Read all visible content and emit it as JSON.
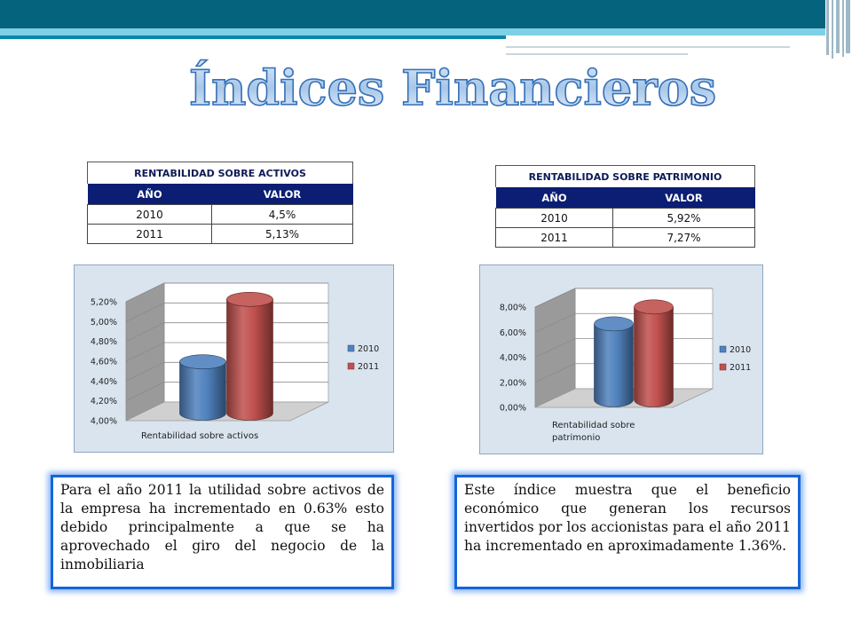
{
  "title": "Índices Financieros",
  "tables": [
    {
      "caption": "RENTABILIDAD SOBRE ACTIVOS",
      "col_year": "AÑO",
      "col_value": "VALOR",
      "rows": [
        {
          "year": "2010",
          "value": "4,5%"
        },
        {
          "year": "2011",
          "value": "5,13%"
        }
      ]
    },
    {
      "caption": "RENTABILIDAD SOBRE  PATRIMONIO",
      "col_year": "AÑO",
      "col_value": "VALOR",
      "rows": [
        {
          "year": "2010",
          "value": "5,92%"
        },
        {
          "year": "2011",
          "value": "7,27%"
        }
      ]
    }
  ],
  "chart_data": [
    {
      "type": "bar",
      "style": "3d-cylinder",
      "categories": [
        "Rentabilidad sobre activos"
      ],
      "series": [
        {
          "name": "2010",
          "values": [
            4.5
          ],
          "color": "#4f81bd"
        },
        {
          "name": "2011",
          "values": [
            5.13
          ],
          "color": "#c0504d"
        }
      ],
      "xlabel": "Rentabilidad sobre activos",
      "ylim": [
        4.0,
        5.2
      ],
      "yticks": [
        "4,00%",
        "4,20%",
        "4,40%",
        "4,60%",
        "4,80%",
        "5,00%",
        "5,20%"
      ],
      "legend": "right",
      "grid": true
    },
    {
      "type": "bar",
      "style": "3d-cylinder",
      "categories": [
        "Rentabilidad sobre patrimonio"
      ],
      "series": [
        {
          "name": "2010",
          "values": [
            5.92
          ],
          "color": "#4f81bd"
        },
        {
          "name": "2011",
          "values": [
            7.27
          ],
          "color": "#c0504d"
        }
      ],
      "xlabel_lines": [
        "Rentabilidad sobre",
        "patrimonio"
      ],
      "ylim": [
        0.0,
        8.0
      ],
      "yticks": [
        "0,00%",
        "2,00%",
        "4,00%",
        "6,00%",
        "8,00%"
      ],
      "legend": "right",
      "grid": true
    }
  ],
  "notes": [
    "Para el año 2011 la utilidad sobre activos de la empresa ha incrementado en 0.63% esto debido principalmente a que se ha aprovechado el giro del negocio de la inmobiliaria",
    "Este índice muestra que el beneficio económico que generan los recursos invertidos por los accionistas para el año 2011 ha incrementado en aproximadamente 1.36%."
  ]
}
